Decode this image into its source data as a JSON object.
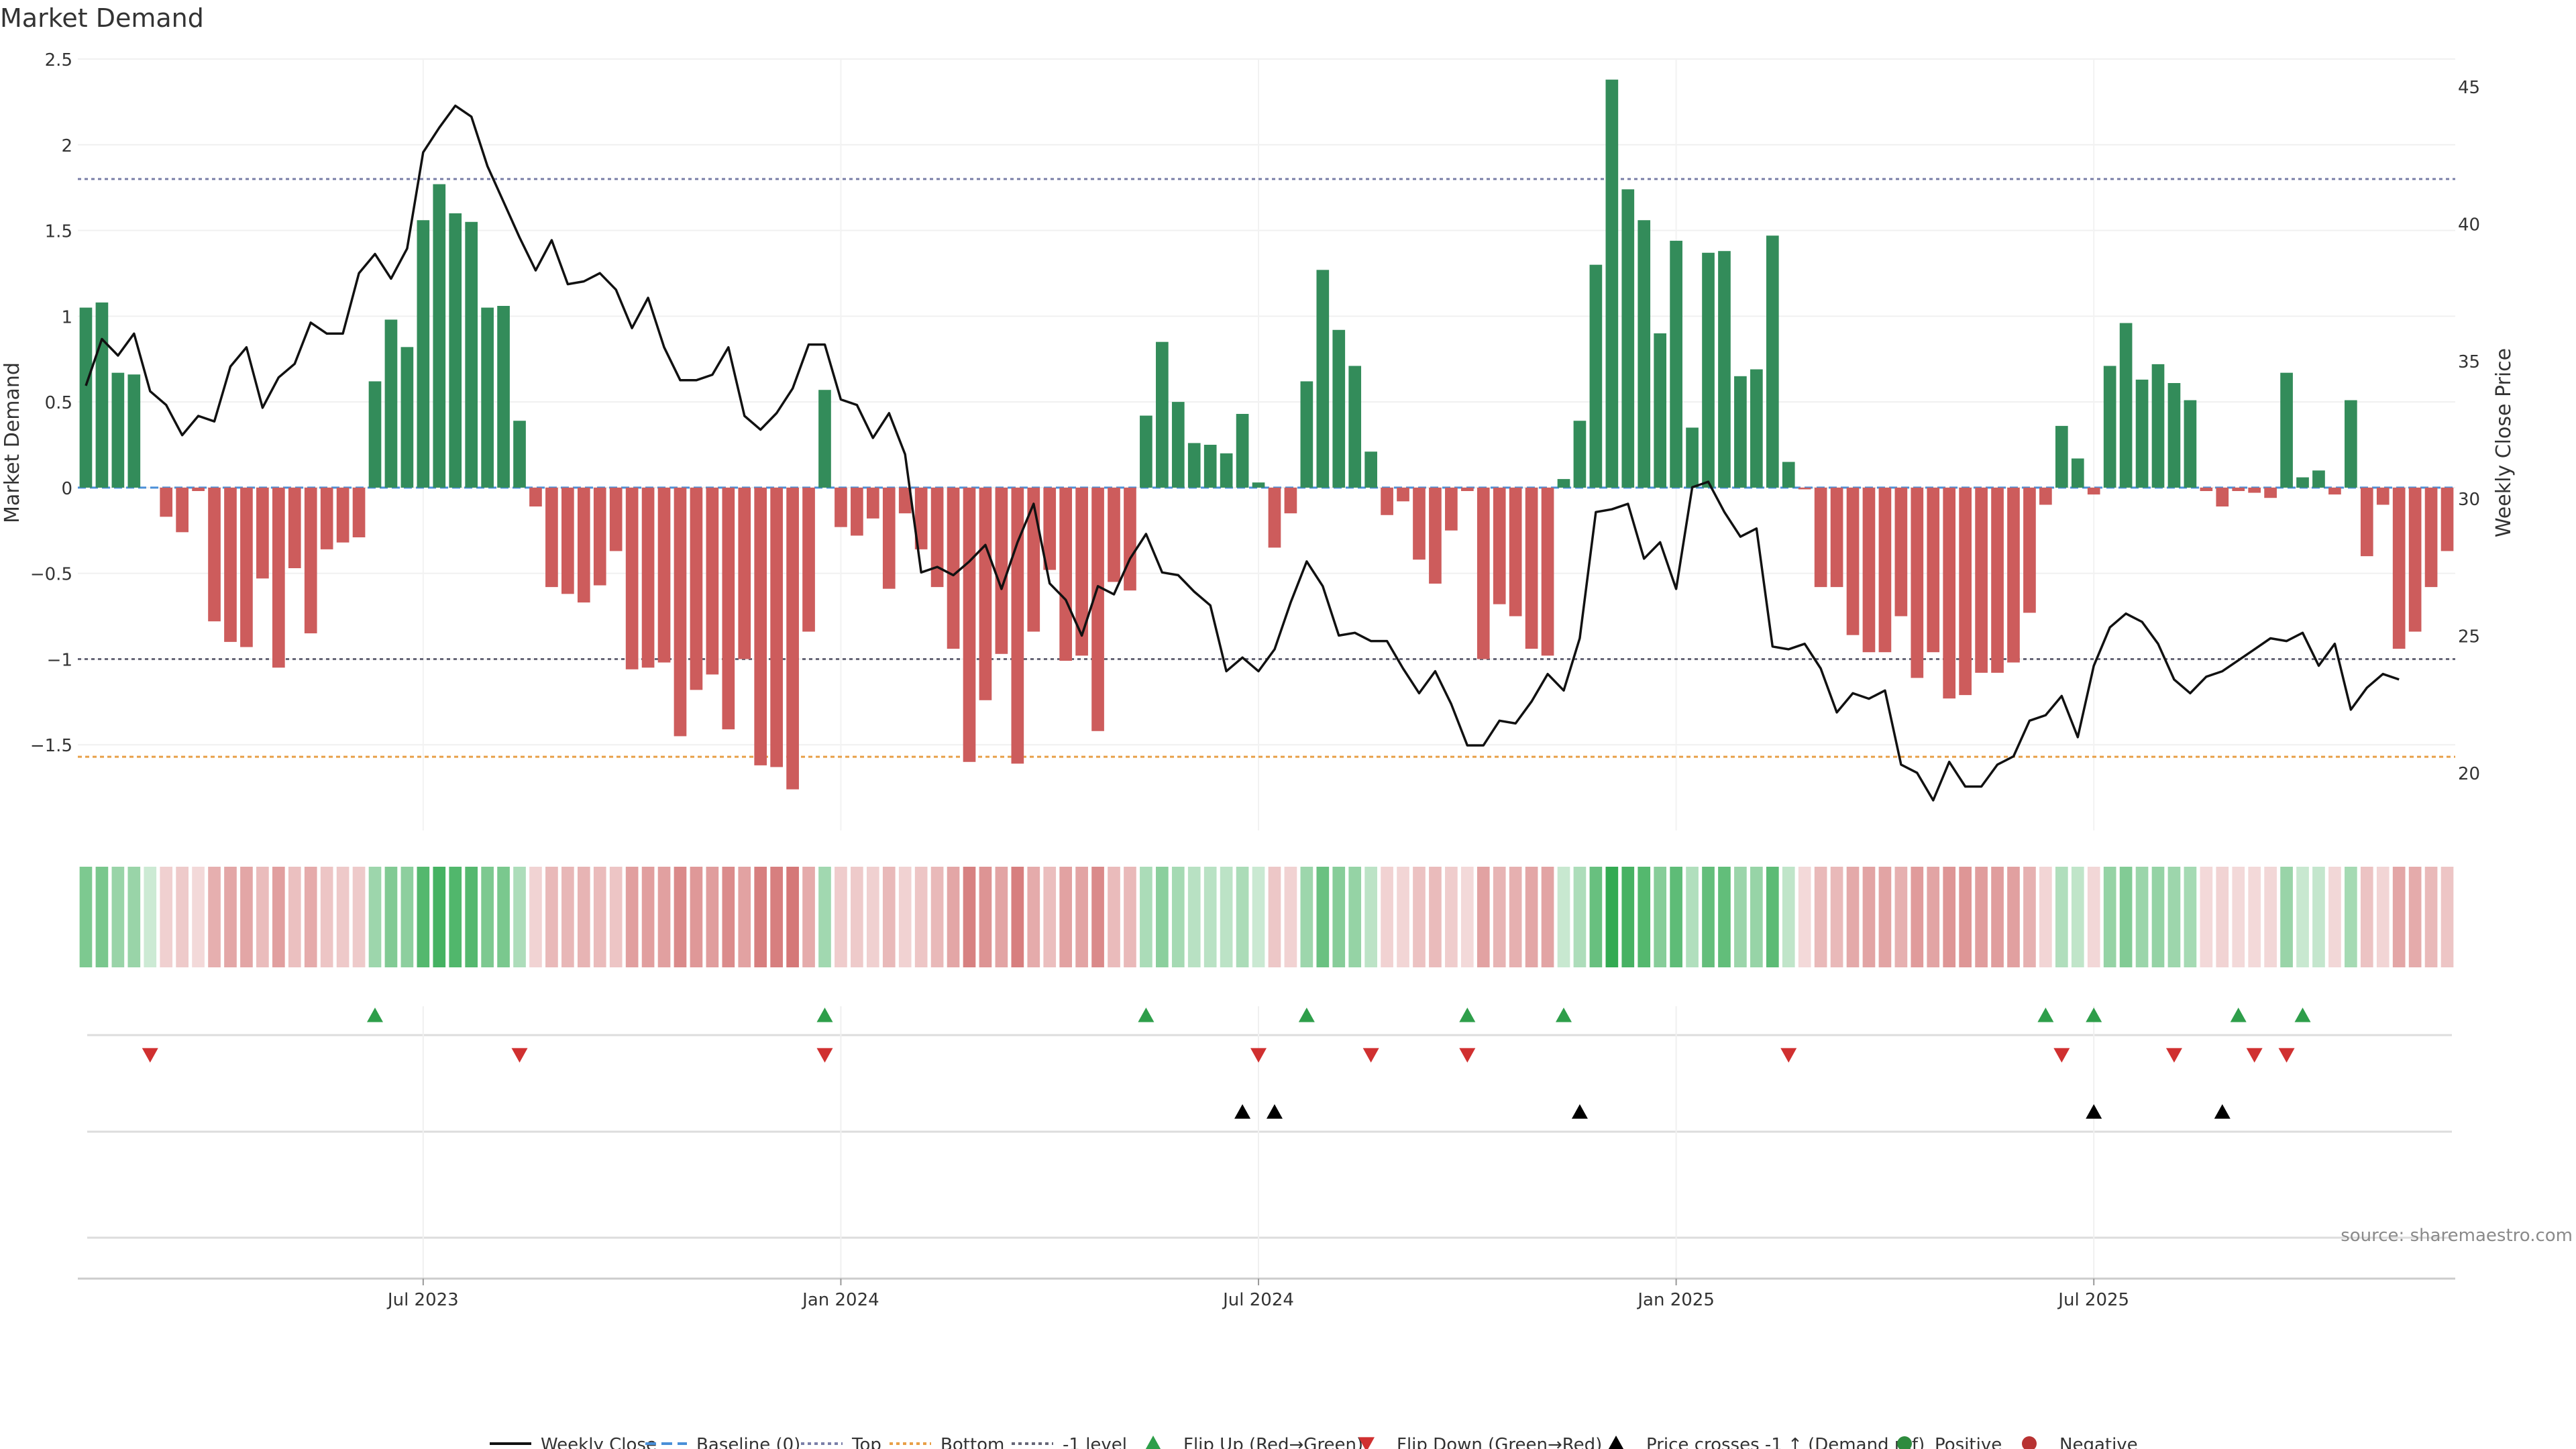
{
  "chart_data": {
    "type": "bar",
    "title": "Market Demand",
    "ylabel": "Market Demand",
    "y2label": "Weekly Close Price",
    "source": "source: sharemaestro.com",
    "ylim": [
      -2.0,
      2.5
    ],
    "y2lim": [
      17.9,
      46.0
    ],
    "yticks": [
      2.5,
      2,
      1.5,
      1,
      0.5,
      0,
      -0.5,
      -1,
      -1.5
    ],
    "ytick_labels": [
      "2.5",
      "2",
      "1.5",
      "1",
      "0.5",
      "0",
      "−0.5",
      "−1",
      "−1.5"
    ],
    "y2ticks": [
      45,
      40,
      35,
      30,
      25,
      20
    ],
    "y2tick_labels": [
      "45",
      "40",
      "35",
      "30",
      "25",
      "20"
    ],
    "xtick_labels": [
      {
        "index": 21,
        "label": "Jul 2023"
      },
      {
        "index": 47,
        "label": "Jan 2024"
      },
      {
        "index": 73,
        "label": "Jul 2024"
      },
      {
        "index": 99,
        "label": "Jan 2025"
      },
      {
        "index": 125,
        "label": "Jul 2025"
      }
    ],
    "reference_lines": {
      "baseline": 0,
      "top": 1.8,
      "bottom": -1.57,
      "minus_one": -1.0
    },
    "demand": [
      1.05,
      1.08,
      0.67,
      0.66,
      0,
      -0.17,
      -0.26,
      -0.02,
      -0.78,
      -0.9,
      -0.93,
      -0.53,
      -1.05,
      -0.47,
      -0.85,
      -0.36,
      -0.32,
      -0.29,
      0.62,
      0.98,
      0.82,
      1.56,
      1.77,
      1.6,
      1.55,
      1.05,
      1.06,
      0.39,
      -0.11,
      -0.58,
      -0.62,
      -0.67,
      -0.57,
      -0.37,
      -1.06,
      -1.05,
      -1.02,
      -1.45,
      -1.18,
      -1.09,
      -1.41,
      -1.0,
      -1.62,
      -1.63,
      -1.76,
      -0.84,
      0.57,
      -0.23,
      -0.28,
      -0.18,
      -0.59,
      -0.15,
      -0.36,
      -0.58,
      -0.94,
      -1.6,
      -1.24,
      -0.97,
      -1.61,
      -0.84,
      -0.48,
      -1.01,
      -0.98,
      -1.42,
      -0.55,
      -0.6,
      0.42,
      0.85,
      0.5,
      0.26,
      0.25,
      0.2,
      0.43,
      0.03,
      -0.35,
      -0.15,
      0.62,
      1.27,
      0.92,
      0.71,
      0.21,
      -0.16,
      -0.08,
      -0.42,
      -0.56,
      -0.25,
      -0.02,
      -1.0,
      -0.68,
      -0.75,
      -0.94,
      -0.98,
      0.05,
      0.39,
      1.3,
      2.38,
      1.74,
      1.56,
      0.9,
      1.44,
      0.35,
      1.37,
      1.38,
      0.65,
      0.69,
      1.47,
      0.15,
      -0.01,
      -0.58,
      -0.58,
      -0.86,
      -0.96,
      -0.96,
      -0.75,
      -1.11,
      -0.96,
      -1.23,
      -1.21,
      -1.08,
      -1.08,
      -1.02,
      -0.73,
      -0.1,
      0.36,
      0.17,
      -0.04,
      0.71,
      0.96,
      0.63,
      0.72,
      0.61,
      0.51,
      -0.02,
      -0.11,
      -0.02,
      -0.03,
      -0.06,
      0.67,
      0.06,
      0.1,
      -0.04,
      0.51,
      -0.4,
      -0.1,
      -0.94,
      -0.84,
      -0.58,
      -0.37
    ],
    "weekly_close": [
      34.1,
      35.8,
      35.2,
      36.0,
      33.9,
      33.4,
      32.3,
      33.0,
      32.8,
      34.8,
      35.5,
      33.3,
      34.4,
      34.9,
      36.4,
      36.0,
      36.0,
      38.2,
      38.9,
      38.0,
      39.1,
      42.6,
      43.5,
      44.3,
      43.9,
      42.1,
      40.8,
      39.5,
      38.3,
      39.4,
      37.8,
      37.9,
      38.2,
      37.6,
      36.2,
      37.3,
      35.5,
      34.3,
      34.3,
      34.5,
      35.5,
      33.0,
      32.5,
      33.1,
      34.0,
      35.6,
      35.6,
      33.6,
      33.4,
      32.2,
      33.1,
      31.6,
      27.3,
      27.5,
      27.2,
      27.7,
      28.3,
      26.7,
      28.4,
      29.8,
      26.9,
      26.3,
      25.0,
      26.8,
      26.5,
      27.8,
      28.7,
      27.3,
      27.2,
      26.6,
      26.1,
      23.7,
      24.2,
      23.7,
      24.5,
      26.2,
      27.7,
      26.8,
      25.0,
      25.1,
      24.8,
      24.8,
      23.8,
      22.9,
      23.7,
      22.5,
      21.0,
      21.0,
      21.9,
      21.8,
      22.6,
      23.6,
      23.0,
      24.9,
      29.5,
      29.6,
      29.8,
      27.8,
      28.4,
      26.7,
      30.4,
      30.6,
      29.5,
      28.6,
      28.9,
      24.6,
      24.5,
      24.7,
      23.8,
      22.2,
      22.9,
      22.7,
      23.0,
      20.3,
      20.0,
      19.0,
      20.4,
      19.5,
      19.5,
      20.3,
      20.6,
      21.9,
      22.1,
      22.8,
      21.3,
      23.9,
      25.3,
      25.8,
      25.5,
      24.7,
      23.4,
      22.9,
      23.5,
      23.7,
      24.1,
      24.5,
      24.9,
      24.8,
      25.1,
      23.9,
      24.7,
      22.3,
      23.1,
      23.6,
      23.4
    ],
    "flip_up": [
      18,
      46,
      66,
      76,
      86,
      92,
      122,
      125,
      134,
      138
    ],
    "flip_down": [
      4,
      27,
      46,
      73,
      80,
      86,
      106,
      123,
      130,
      135,
      137
    ],
    "price_crosses": [
      72,
      74,
      93,
      125,
      133
    ],
    "legend": [
      {
        "label": "Weekly Close",
        "kind": "line",
        "color": "#111111"
      },
      {
        "label": "Baseline (0)",
        "kind": "dash",
        "color": "#4a8fd8"
      },
      {
        "label": "Top",
        "kind": "dot",
        "color": "#7a7fa8"
      },
      {
        "label": "Bottom",
        "kind": "dot",
        "color": "#e8a048"
      },
      {
        "label": "-1 level",
        "kind": "dot",
        "color": "#666677"
      },
      {
        "label": "Flip Up (Red→Green)",
        "kind": "tri-up",
        "color": "#2e9e4a"
      },
      {
        "label": "Flip Down (Green→Red)",
        "kind": "tri-down",
        "color": "#d03030"
      },
      {
        "label": "Price crosses -1 ↑ (Demand ref)",
        "kind": "tri-up",
        "color": "#000000"
      },
      {
        "label": "Positive",
        "kind": "dot-marker",
        "color": "#2e8b3e"
      },
      {
        "label": "Negative",
        "kind": "dot-marker",
        "color": "#b83232"
      }
    ]
  },
  "colors": {
    "positive_bar": "#338c5a",
    "negative_bar": "#cd5c5c",
    "line": "#111111"
  }
}
